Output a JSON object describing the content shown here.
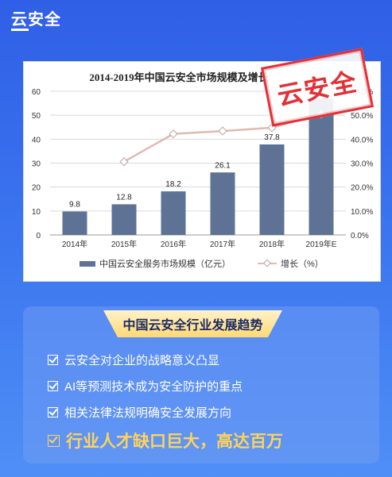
{
  "header": {
    "title": "云安全"
  },
  "stamp": {
    "text": "云安全"
  },
  "chart_data": {
    "type": "bar",
    "title": "2014-2019年中国云安全市场规模及增长",
    "categories": [
      "2014年",
      "2015年",
      "2016年",
      "2017年",
      "2018年",
      "2019年E"
    ],
    "series": [
      {
        "name": "中国云安全服务市场规模（亿元）",
        "type": "bar",
        "axis": "left",
        "values": [
          9.8,
          12.8,
          18.2,
          26.1,
          37.8,
          56.9
        ],
        "color": "#5e7295"
      },
      {
        "name": "增长（%）",
        "type": "line",
        "axis": "right",
        "values": [
          null,
          30.6,
          42.2,
          43.4,
          44.8,
          50.5
        ],
        "color": "#e0b9b0"
      }
    ],
    "data_labels": [
      "9.8",
      "12.8",
      "18.2",
      "26.1",
      "37.8",
      ""
    ],
    "ylim": [
      0,
      60
    ],
    "y_ticks": [
      "0",
      "10",
      "20",
      "30",
      "40",
      "50",
      "60"
    ],
    "y2lim": [
      0,
      60
    ],
    "y2_ticks": [
      "0.0%",
      "10.0%",
      "20.0%",
      "30.0%",
      "40.0%",
      "50.0%",
      "60.0%"
    ],
    "grid": true,
    "legend": "bottom"
  },
  "trends": {
    "title": "中国云安全行业发展趋势",
    "items": [
      "云安全对企业的战略意义凸显",
      "AI等预测技术成为安全防护的重点",
      "相关法律法规明确安全发展方向",
      "行业人才缺口巨大，高达百万"
    ]
  }
}
